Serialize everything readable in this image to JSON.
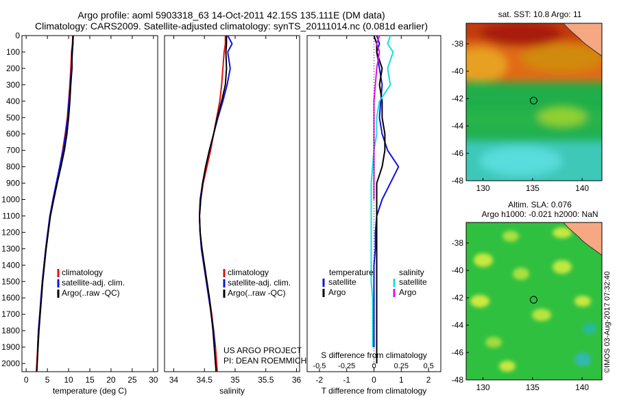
{
  "header": {
    "title_line1": "Argo profile: aoml 5903318_63 14-Oct-2011 42.15S 135.111E (DM data)",
    "title_line2": "Climatology: CARS2009. Satellite-adjusted climatology: synTS_20111014.nc (0.081d earlier)"
  },
  "footer": {
    "project_line1": "US ARGO PROJECT",
    "project_line2": "PI: DEAN ROEMMICH",
    "imos_stamp": "©IMOS 03-Aug-2017 07:32:40"
  },
  "colors": {
    "climatology": "#e01010",
    "satellite": "#1010e0",
    "argo": "#000000",
    "sat_salinity": "#10e0e0",
    "argo_salinity": "#e010e0"
  },
  "chart_data": [
    {
      "type": "line",
      "panel": "temperature",
      "xlabel": "temperature (deg C)",
      "ylabel": "",
      "xlim": [
        -1,
        31
      ],
      "ylim": [
        2050,
        0
      ],
      "xticks": [
        0,
        5,
        10,
        15,
        20,
        25,
        30
      ],
      "yticks": [
        0,
        100,
        200,
        300,
        400,
        500,
        600,
        700,
        800,
        900,
        1000,
        1100,
        1200,
        1300,
        1400,
        1500,
        1600,
        1700,
        1800,
        1900,
        2000
      ],
      "legend": [
        "climatology",
        "satellite-adj. clim.",
        "Argo(..raw -QC)"
      ],
      "series": [
        {
          "name": "climatology",
          "x": [
            11.0,
            10.9,
            10.7,
            10.5,
            10.3,
            10.0,
            9.7,
            9.2,
            8.6,
            7.9,
            7.2,
            6.4,
            5.6,
            5.1,
            4.6,
            4.2,
            3.8,
            3.5,
            3.2,
            2.9,
            2.7,
            2.5,
            2.4
          ],
          "y": [
            0,
            50,
            100,
            200,
            300,
            400,
            500,
            600,
            700,
            800,
            900,
            1000,
            1100,
            1200,
            1300,
            1400,
            1500,
            1600,
            1700,
            1800,
            1900,
            2000,
            2050
          ]
        },
        {
          "name": "satellite-adj. clim.",
          "x": [
            11.1,
            11.0,
            10.9,
            10.7,
            10.4,
            10.1,
            9.8,
            9.3,
            8.7,
            7.9,
            7.1,
            6.3,
            5.6,
            5.1,
            4.6,
            4.2,
            3.8,
            3.5,
            3.2,
            2.9,
            2.7
          ],
          "y": [
            0,
            50,
            100,
            200,
            300,
            400,
            500,
            600,
            700,
            800,
            900,
            1000,
            1100,
            1200,
            1300,
            1400,
            1500,
            1600,
            1700,
            1800,
            1900
          ]
        },
        {
          "name": "Argo(..raw -QC)",
          "x": [
            11.0,
            11.0,
            10.8,
            10.8,
            10.5,
            10.3,
            10.0,
            9.6,
            9.0,
            8.2,
            7.3,
            6.5,
            5.7,
            5.2,
            4.7,
            4.3,
            3.9,
            3.6,
            3.3,
            3.0,
            2.8,
            2.6,
            2.5
          ],
          "y": [
            0,
            50,
            100,
            200,
            300,
            400,
            500,
            600,
            700,
            800,
            900,
            1000,
            1100,
            1200,
            1300,
            1400,
            1500,
            1600,
            1700,
            1800,
            1900,
            2000,
            2050
          ]
        }
      ]
    },
    {
      "type": "line",
      "panel": "salinity",
      "xlabel": "salinity",
      "xlim": [
        33.85,
        36.05
      ],
      "ylim": [
        2050,
        0
      ],
      "xticks": [
        34,
        34.5,
        35,
        35.5,
        36
      ],
      "xticklabels": [
        "34",
        "34.5",
        "35",
        "35.5",
        "36"
      ],
      "legend": [
        "climatology",
        "satellite-adj. clim.",
        "Argo(..raw -QC)"
      ],
      "series": [
        {
          "name": "climatology",
          "x": [
            34.84,
            34.84,
            34.82,
            34.8,
            34.78,
            34.75,
            34.7,
            34.65,
            34.6,
            34.54,
            34.48,
            34.44,
            34.42,
            34.43,
            34.46,
            34.5,
            34.54,
            34.58,
            34.62,
            34.65,
            34.68,
            34.7,
            34.71
          ],
          "y": [
            0,
            50,
            100,
            200,
            300,
            400,
            500,
            600,
            700,
            800,
            900,
            1000,
            1100,
            1200,
            1300,
            1400,
            1500,
            1600,
            1700,
            1800,
            1900,
            2000,
            2050
          ]
        },
        {
          "name": "satellite-adj. clim.",
          "x": [
            34.88,
            34.95,
            34.88,
            34.92,
            34.87,
            34.8,
            34.72,
            34.65,
            34.58,
            34.52,
            34.47,
            34.43,
            34.42,
            34.43,
            34.45,
            34.49,
            34.53,
            34.57,
            34.61,
            34.65,
            34.67
          ],
          "y": [
            0,
            50,
            100,
            200,
            300,
            400,
            500,
            600,
            700,
            800,
            900,
            1000,
            1100,
            1200,
            1300,
            1400,
            1500,
            1600,
            1700,
            1800,
            1900
          ]
        },
        {
          "name": "Argo(..raw -QC)",
          "x": [
            34.86,
            34.86,
            34.85,
            34.86,
            34.84,
            34.78,
            34.71,
            34.65,
            34.58,
            34.52,
            34.47,
            34.44,
            34.42,
            34.43,
            34.46,
            34.5,
            34.54,
            34.58,
            34.61,
            34.64,
            34.66,
            34.68,
            34.69
          ],
          "y": [
            0,
            50,
            100,
            200,
            300,
            400,
            500,
            600,
            700,
            800,
            900,
            1000,
            1100,
            1200,
            1300,
            1400,
            1500,
            1600,
            1700,
            1800,
            1900,
            2000,
            2050
          ]
        }
      ]
    },
    {
      "type": "line",
      "panel": "difference",
      "xlabel": "T difference from climatology",
      "top_label": "S difference from climatology",
      "xlim": [
        -2.45,
        2.45
      ],
      "ylim": [
        2050,
        0
      ],
      "xticks": [
        -2,
        -1,
        0,
        1,
        2
      ],
      "s_ticklabels": [
        "-0.5",
        "-0.25",
        "0",
        "0.25",
        "0.5"
      ],
      "legend_headers": [
        "temperature",
        "salinity"
      ],
      "legend": [
        "satellite",
        "Argo",
        "satellite",
        "Argo"
      ],
      "series": [
        {
          "name": "satellite",
          "x": [
            0.1,
            0.2,
            0.1,
            0.2,
            0.3,
            0.25,
            0.2,
            0.3,
            0.5,
            0.9,
            0.6,
            0.3,
            0.1,
            0.05,
            0.05,
            0.0,
            0.0,
            0.0,
            0.0,
            0.0,
            0.0
          ],
          "y": [
            0,
            50,
            100,
            200,
            300,
            400,
            500,
            600,
            700,
            800,
            900,
            1000,
            1100,
            1200,
            1300,
            1400,
            1500,
            1600,
            1700,
            1800,
            1900
          ]
        },
        {
          "name": "Argo",
          "x": [
            0.0,
            0.1,
            0.1,
            0.3,
            0.2,
            0.3,
            0.3,
            0.4,
            0.4,
            0.3,
            0.1,
            0.1,
            0.1,
            0.1,
            0.1,
            0.1,
            0.1,
            0.1,
            0.1,
            0.1,
            0.1,
            0.1
          ],
          "y": [
            0,
            50,
            100,
            200,
            300,
            400,
            500,
            600,
            700,
            800,
            900,
            1000,
            1100,
            1200,
            1300,
            1400,
            1500,
            1600,
            1700,
            1800,
            1900,
            2000
          ]
        },
        {
          "name": "satellite",
          "x": [
            0.6,
            0.5,
            0.7,
            0.5,
            0.6,
            0.2,
            0.1,
            0.1,
            0.0,
            -0.05,
            -0.1,
            -0.1,
            -0.1,
            -0.1,
            -0.1,
            -0.1,
            -0.1,
            -0.05,
            -0.05,
            -0.05,
            -0.05
          ],
          "y": [
            0,
            50,
            100,
            200,
            300,
            400,
            500,
            600,
            700,
            800,
            900,
            1000,
            1100,
            1200,
            1300,
            1400,
            1500,
            1600,
            1700,
            1800,
            1900
          ]
        },
        {
          "name": "Argo",
          "x": [
            0.2,
            0.1,
            0.2,
            0.15,
            0.1,
            0.05,
            0.0,
            0.0,
            0.0,
            0.0,
            0.0,
            0.0,
            0.0
          ],
          "y": [
            0,
            50,
            100,
            150,
            200,
            300,
            400,
            500,
            600,
            700,
            800,
            900,
            1000
          ]
        }
      ]
    },
    {
      "type": "heatmap",
      "panel": "sst_map",
      "title": "sat. SST: 10.8 Argo: 11",
      "xlim": [
        128.3,
        142.0
      ],
      "ylim": [
        -48.0,
        -36.5
      ],
      "xticks": [
        130,
        135,
        140
      ],
      "yticks": [
        -38,
        -40,
        -42,
        -44,
        -46,
        -48
      ],
      "marker": {
        "lon": 135.111,
        "lat": -42.15
      }
    },
    {
      "type": "heatmap",
      "panel": "sla_map",
      "title_line1": "Altim. SLA: 0.076",
      "title_line2": "Argo h1000: -0.021 h2000: NaN",
      "xlim": [
        128.3,
        142.0
      ],
      "ylim": [
        -48.0,
        -36.5
      ],
      "xticks": [
        130,
        135,
        140
      ],
      "yticks": [
        -38,
        -40,
        -42,
        -44,
        -46,
        -48
      ],
      "marker": {
        "lon": 135.111,
        "lat": -42.15
      }
    }
  ]
}
